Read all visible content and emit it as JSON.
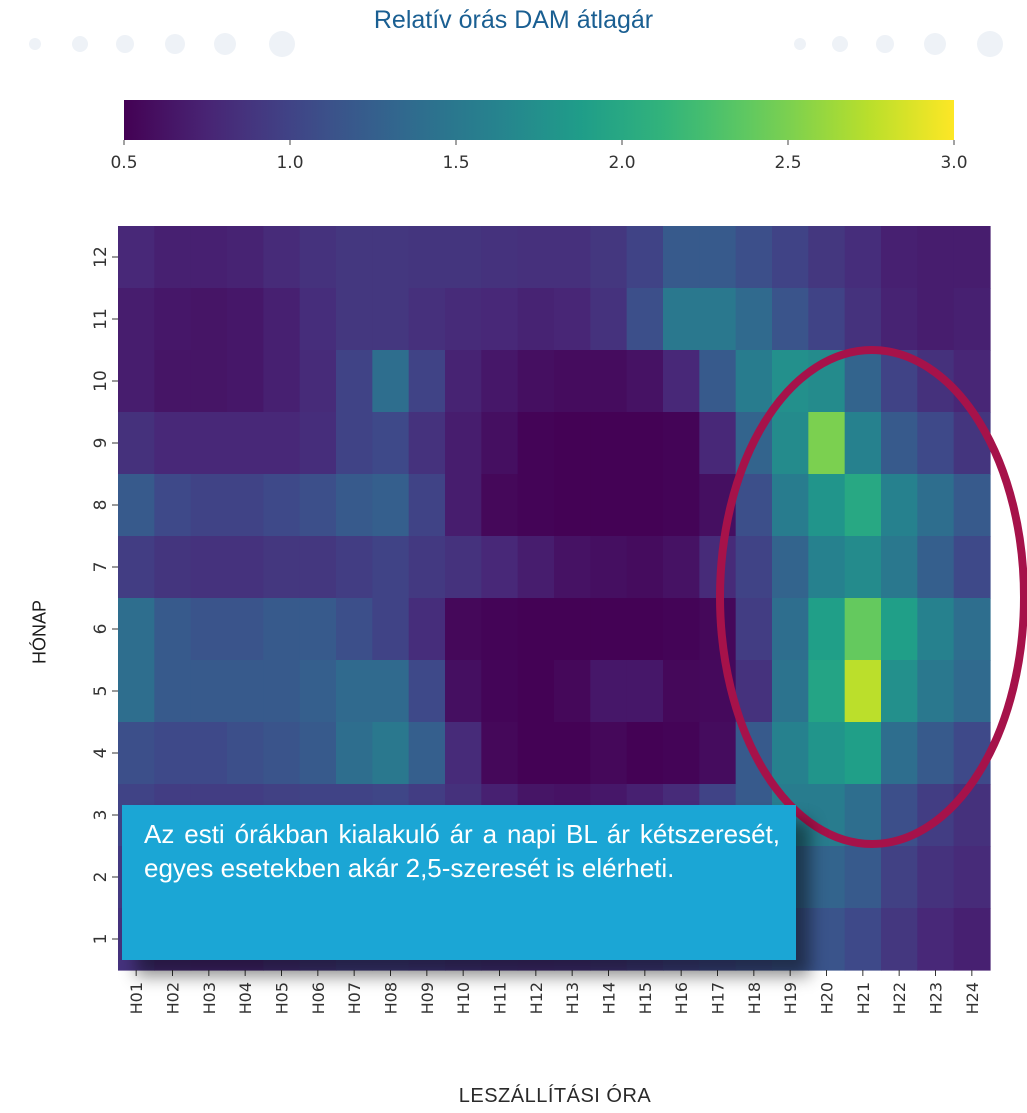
{
  "title": "Relatív órás DAM átlagár",
  "callout_text": "Az esti órákban kialakuló ár a napi BL ár kétszeresét, egyes esetekben akár 2,5-szeresét is elérheti.",
  "colors": {
    "title": "#1a5f92",
    "callout_bg": "#1ba6d5",
    "ellipse": "#a6124a"
  },
  "chart_data": {
    "type": "heatmap",
    "colormap": "viridis",
    "xlabel": "LESZÁLLÍTÁSI ÓRA",
    "ylabel": "HÓNAP",
    "x": [
      "H01",
      "H02",
      "H03",
      "H04",
      "H05",
      "H06",
      "H07",
      "H08",
      "H09",
      "H10",
      "H11",
      "H12",
      "H13",
      "H14",
      "H15",
      "H16",
      "H17",
      "H18",
      "H19",
      "H20",
      "H21",
      "H22",
      "H23",
      "H24"
    ],
    "y": [
      "12",
      "11",
      "10",
      "9",
      "8",
      "7",
      "6",
      "5",
      "4",
      "3",
      "2",
      "1"
    ],
    "colorbar": {
      "range": [
        0.5,
        3.0
      ],
      "ticks": [
        "0.5",
        "1.0",
        "1.5",
        "2.0",
        "2.5",
        "3.0"
      ]
    },
    "values": [
      [
        0.78,
        0.72,
        0.72,
        0.74,
        0.8,
        0.86,
        0.9,
        0.9,
        0.88,
        0.88,
        0.86,
        0.84,
        0.84,
        0.9,
        1.0,
        1.2,
        1.2,
        1.1,
        1.0,
        0.9,
        0.82,
        0.72,
        0.7,
        0.7
      ],
      [
        0.7,
        0.66,
        0.64,
        0.66,
        0.72,
        0.82,
        0.9,
        0.9,
        0.84,
        0.8,
        0.78,
        0.74,
        0.76,
        0.86,
        1.1,
        1.5,
        1.5,
        1.35,
        1.15,
        1.0,
        0.86,
        0.74,
        0.7,
        0.72
      ],
      [
        0.7,
        0.64,
        0.64,
        0.66,
        0.72,
        0.8,
        1.0,
        1.4,
        1.0,
        0.74,
        0.66,
        0.6,
        0.58,
        0.58,
        0.62,
        0.78,
        1.2,
        1.55,
        1.75,
        1.7,
        1.3,
        1.0,
        0.85,
        0.76
      ],
      [
        0.85,
        0.78,
        0.78,
        0.78,
        0.78,
        0.82,
        1.0,
        1.05,
        0.86,
        0.7,
        0.6,
        0.52,
        0.51,
        0.51,
        0.51,
        0.52,
        0.78,
        1.3,
        1.7,
        2.5,
        1.6,
        1.2,
        1.05,
        0.88
      ],
      [
        1.2,
        1.05,
        1.0,
        1.0,
        1.05,
        1.1,
        1.2,
        1.25,
        1.0,
        0.7,
        0.55,
        0.52,
        0.51,
        0.51,
        0.51,
        0.52,
        0.6,
        1.1,
        1.55,
        1.8,
        2.0,
        1.6,
        1.4,
        1.2
      ],
      [
        0.95,
        0.88,
        0.86,
        0.86,
        0.9,
        0.9,
        0.95,
        1.0,
        0.92,
        0.86,
        0.78,
        0.7,
        0.62,
        0.6,
        0.58,
        0.62,
        0.8,
        1.0,
        1.3,
        1.6,
        1.7,
        1.5,
        1.25,
        1.05
      ],
      [
        1.4,
        1.2,
        1.15,
        1.15,
        1.2,
        1.2,
        1.1,
        1.0,
        0.82,
        0.55,
        0.52,
        0.51,
        0.51,
        0.51,
        0.51,
        0.52,
        0.55,
        0.95,
        1.4,
        1.9,
        2.4,
        1.9,
        1.6,
        1.4
      ],
      [
        1.4,
        1.2,
        1.2,
        1.2,
        1.2,
        1.25,
        1.35,
        1.35,
        1.05,
        0.6,
        0.53,
        0.51,
        0.55,
        0.66,
        0.66,
        0.55,
        0.56,
        0.86,
        1.45,
        1.95,
        2.75,
        1.75,
        1.5,
        1.35
      ],
      [
        1.1,
        1.05,
        1.05,
        1.1,
        1.15,
        1.2,
        1.4,
        1.5,
        1.25,
        0.8,
        0.55,
        0.51,
        0.51,
        0.55,
        0.51,
        0.52,
        0.58,
        1.2,
        1.6,
        1.8,
        1.9,
        1.4,
        1.2,
        1.05
      ],
      [
        1.0,
        0.95,
        0.95,
        0.95,
        0.98,
        1.0,
        1.0,
        1.02,
        0.95,
        0.85,
        0.72,
        0.64,
        0.62,
        0.66,
        0.72,
        0.8,
        1.0,
        1.2,
        1.55,
        1.55,
        1.4,
        1.1,
        0.95,
        0.85
      ],
      [
        0.92,
        0.88,
        0.85,
        0.85,
        0.9,
        0.95,
        1.0,
        1.0,
        0.95,
        0.9,
        0.86,
        0.84,
        0.86,
        0.9,
        0.98,
        1.05,
        1.1,
        1.2,
        1.3,
        1.3,
        1.2,
        0.98,
        0.86,
        0.8
      ],
      [
        0.86,
        0.8,
        0.78,
        0.78,
        0.84,
        0.9,
        0.95,
        0.95,
        0.92,
        0.88,
        0.86,
        0.84,
        0.86,
        0.9,
        0.95,
        1.0,
        1.05,
        1.1,
        1.15,
        1.15,
        1.05,
        0.9,
        0.78,
        0.72
      ]
    ]
  }
}
